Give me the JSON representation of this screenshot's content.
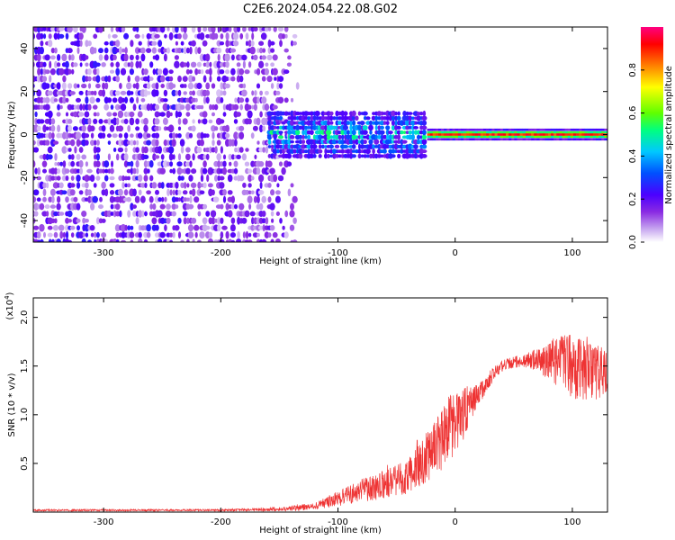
{
  "figure_title": "C2E6.2024.054.22.08.G02",
  "chart_data": [
    {
      "type": "heatmap",
      "title": "",
      "xlabel": "Height of straight line (km)",
      "ylabel": "Frequency (Hz)",
      "xlim": [
        -360,
        130
      ],
      "ylim": [
        -50,
        50
      ],
      "x_ticks": [
        -300,
        -200,
        -100,
        0,
        100
      ],
      "y_ticks": [
        -40,
        -20,
        0,
        20,
        40
      ],
      "colorbar": {
        "label": "Normalized spectral amplitude",
        "range": [
          0,
          1
        ],
        "ticks": [
          "0.0",
          "0.2",
          "0.4",
          "0.6",
          "0.8"
        ],
        "colormap": [
          "#ffffff",
          "#c8a8f0",
          "#8a2be2",
          "#4b00ff",
          "#0050ff",
          "#00c8ff",
          "#00ff80",
          "#60ff00",
          "#ffff00",
          "#ff8000",
          "#ff0000",
          "#ff0080"
        ]
      },
      "features": {
        "noise_region_x": [
          -360,
          -130
        ],
        "carrier_frequency_hz": 0,
        "spread_region_x": [
          -160,
          -25
        ],
        "spread_width_hz": 10,
        "narrow_line_x": [
          -25,
          130
        ],
        "narrow_line_peak_amplitude": 0.9
      }
    },
    {
      "type": "line",
      "title": "",
      "xlabel": "Height of straight line (km)",
      "ylabel": "SNR (10 * v/v)",
      "y_scale_label": "(x10^4)",
      "xlim": [
        -360,
        130
      ],
      "ylim": [
        0,
        2.2
      ],
      "x_ticks": [
        -300,
        -200,
        -100,
        0,
        100
      ],
      "y_ticks": [
        0.5,
        1.0,
        1.5,
        2.0
      ],
      "series_color": "#ee3333",
      "envelope": {
        "x": [
          -360,
          -200,
          -150,
          -120,
          -100,
          -80,
          -60,
          -40,
          -20,
          -5,
          10,
          20,
          30,
          40,
          50,
          60,
          70,
          80,
          90,
          100,
          110,
          120,
          130
        ],
        "mean": [
          0.02,
          0.02,
          0.03,
          0.06,
          0.14,
          0.22,
          0.28,
          0.36,
          0.62,
          0.85,
          1.05,
          1.2,
          1.38,
          1.5,
          1.54,
          1.56,
          1.57,
          1.56,
          1.55,
          1.52,
          1.48,
          1.45,
          1.43
        ],
        "spread": [
          0.01,
          0.01,
          0.02,
          0.04,
          0.08,
          0.12,
          0.15,
          0.18,
          0.28,
          0.35,
          0.25,
          0.12,
          0.08,
          0.06,
          0.06,
          0.08,
          0.12,
          0.2,
          0.28,
          0.35,
          0.35,
          0.3,
          0.2
        ]
      }
    }
  ]
}
